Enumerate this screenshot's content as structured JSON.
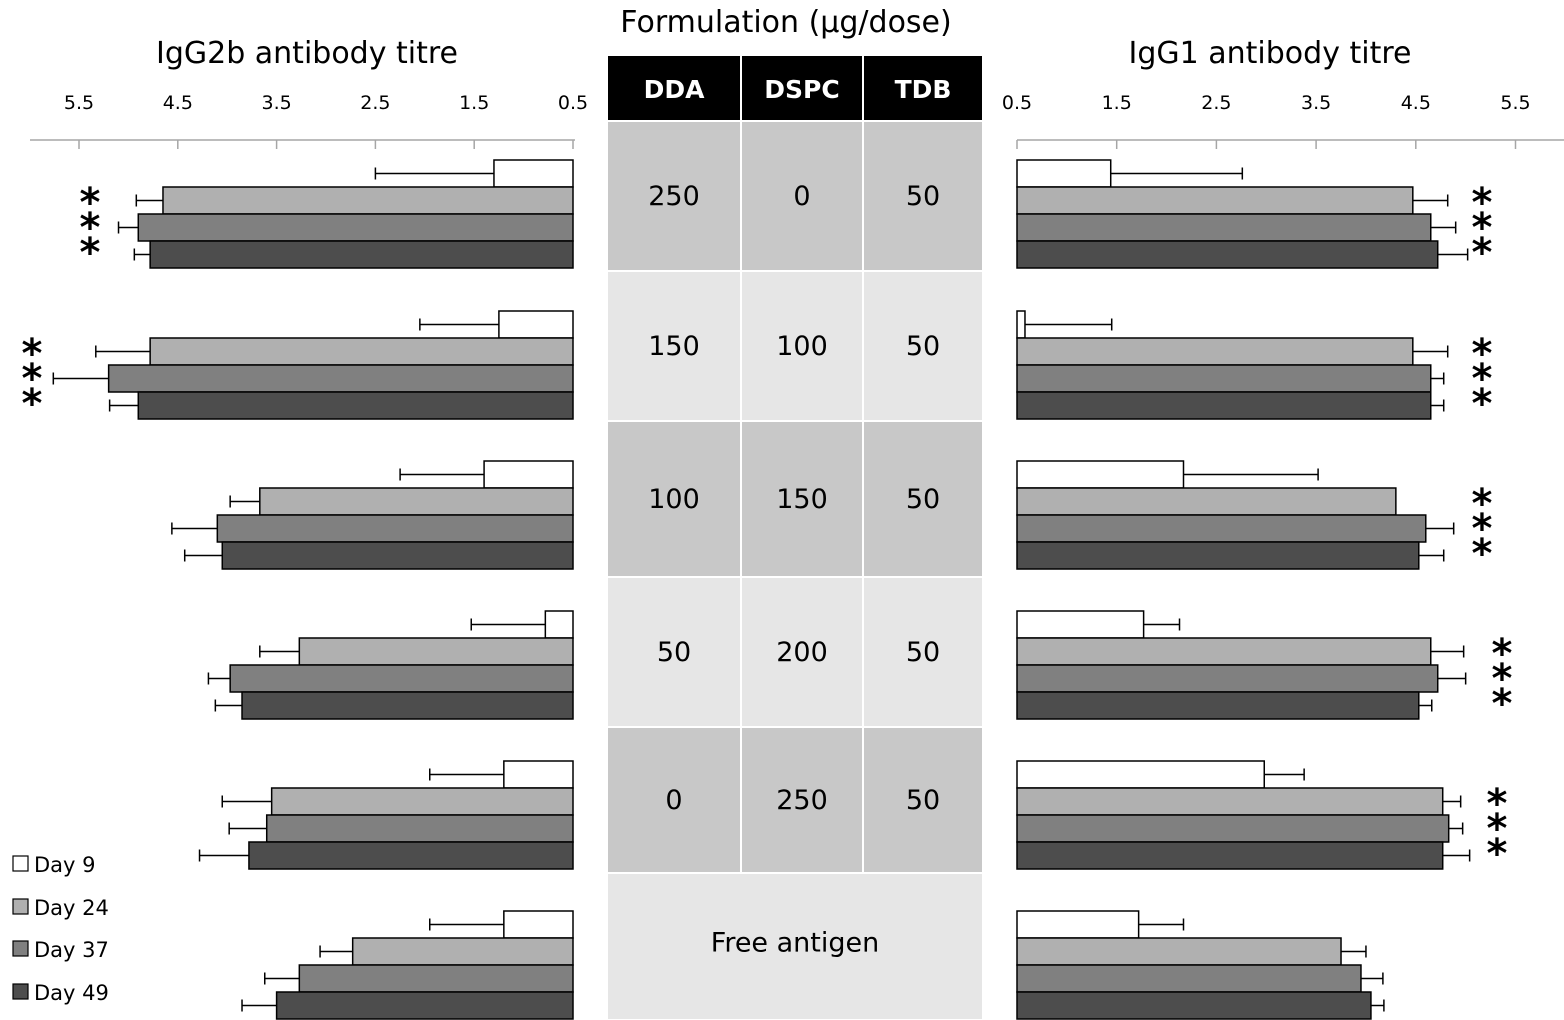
{
  "colors": {
    "day9": "#ffffff",
    "day24": "#b0b0b0",
    "day37": "#808080",
    "day49": "#4d4d4d",
    "table_header": "#000000",
    "table_dark": "#c8c8c8",
    "table_light": "#e6e6e6"
  },
  "table": {
    "title": "Formulation (µg/dose)",
    "headers": [
      "DDA",
      "DSPC",
      "TDB"
    ],
    "rows": [
      [
        "250",
        "0",
        "50"
      ],
      [
        "150",
        "100",
        "50"
      ],
      [
        "100",
        "150",
        "50"
      ],
      [
        "50",
        "200",
        "50"
      ],
      [
        "0",
        "250",
        "50"
      ]
    ],
    "free_row": "Free antigen"
  },
  "chart_data": [
    {
      "type": "bar",
      "orientation": "horizontal",
      "x_reversed": true,
      "title": "IgG2b antibody titre",
      "xlim": [
        0.5,
        6.0
      ],
      "ticks": [
        "0.5",
        "1.5",
        "2.5",
        "3.5",
        "4.5",
        "5.5"
      ],
      "groups": [
        "250/0/50",
        "150/100/50",
        "100/150/50",
        "50/200/50",
        "0/250/50",
        "Free antigen"
      ],
      "series": [
        {
          "name": "Day 9",
          "values": [
            1.3,
            1.25,
            1.4,
            0.78,
            1.2,
            1.2
          ],
          "errors": [
            1.2,
            0.8,
            0.85,
            0.75,
            0.75,
            0.75
          ]
        },
        {
          "name": "Day 24",
          "values": [
            4.65,
            4.78,
            3.67,
            3.27,
            3.55,
            2.73
          ],
          "errors": [
            0.27,
            0.55,
            0.3,
            0.4,
            0.5,
            0.33
          ]
        },
        {
          "name": "Day 37",
          "values": [
            4.9,
            5.2,
            4.1,
            3.97,
            3.6,
            3.27
          ],
          "errors": [
            0.2,
            0.56,
            0.46,
            0.22,
            0.38,
            0.35
          ]
        },
        {
          "name": "Day 49",
          "values": [
            4.78,
            4.9,
            4.05,
            3.85,
            3.78,
            3.5
          ],
          "errors": [
            0.16,
            0.29,
            0.38,
            0.27,
            0.5,
            0.35
          ]
        }
      ],
      "significance": [
        "***",
        "***",
        "",
        "",
        "",
        ""
      ]
    },
    {
      "type": "bar",
      "orientation": "horizontal",
      "title": "IgG1 antibody titre",
      "xlim": [
        0.5,
        6.0
      ],
      "ticks": [
        "0.5",
        "1.5",
        "2.5",
        "3.5",
        "4.5",
        "5.5"
      ],
      "groups": [
        "250/0/50",
        "150/100/50",
        "100/150/50",
        "50/200/50",
        "0/250/50",
        "Free antigen"
      ],
      "series": [
        {
          "name": "Day 9",
          "values": [
            1.44,
            0.58,
            2.17,
            1.77,
            2.98,
            1.72
          ],
          "errors": [
            1.32,
            0.87,
            1.35,
            0.36,
            0.4,
            0.45
          ]
        },
        {
          "name": "Day 24",
          "values": [
            4.47,
            4.47,
            4.3,
            4.65,
            4.77,
            3.75
          ],
          "errors": [
            0.35,
            0.35,
            0.0,
            0.33,
            0.18,
            0.25
          ]
        },
        {
          "name": "Day 37",
          "values": [
            4.65,
            4.65,
            4.6,
            4.72,
            4.83,
            3.95
          ],
          "errors": [
            0.25,
            0.13,
            0.28,
            0.28,
            0.14,
            0.22
          ]
        },
        {
          "name": "Day 49",
          "values": [
            4.72,
            4.65,
            4.53,
            4.53,
            4.77,
            4.05
          ],
          "errors": [
            0.3,
            0.13,
            0.25,
            0.13,
            0.27,
            0.13
          ]
        }
      ],
      "significance": [
        "***",
        "***",
        "***",
        "***",
        "***",
        ""
      ]
    }
  ],
  "legend": [
    "Day 9",
    "Day 24",
    "Day 37",
    "Day 49"
  ]
}
